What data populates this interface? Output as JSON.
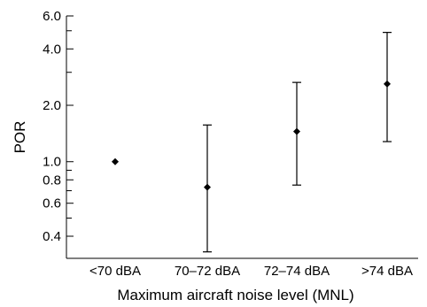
{
  "chart_data": {
    "type": "scatter",
    "categories": [
      "<70 dBA",
      "70–72 dBA",
      "72–74 dBA",
      ">74 dBA"
    ],
    "series": [
      {
        "values": [
          1.0,
          0.73,
          1.45,
          2.6
        ],
        "lower": [
          null,
          0.33,
          0.75,
          1.28
        ],
        "upper": [
          null,
          1.57,
          2.65,
          4.9
        ]
      }
    ],
    "xlabel": "Maximum aircraft noise level (MNL)",
    "ylabel": "POR",
    "yscale": "log",
    "ylim": [
      0.3,
      6.0
    ],
    "yticks_major": [
      {
        "value": 0.4,
        "label": "0.4"
      },
      {
        "value": 0.6,
        "label": "0.6"
      },
      {
        "value": 0.8,
        "label": "0.8"
      },
      {
        "value": 1.0,
        "label": "1.0"
      },
      {
        "value": 2.0,
        "label": "2.0"
      },
      {
        "value": 4.0,
        "label": "4.0"
      },
      {
        "value": 6.0,
        "label": "6.0"
      }
    ],
    "yticks_minor": [
      0.5,
      0.7,
      0.9,
      3.0,
      5.0
    ],
    "grid": false,
    "marker": "diamond",
    "error_bars": true
  }
}
